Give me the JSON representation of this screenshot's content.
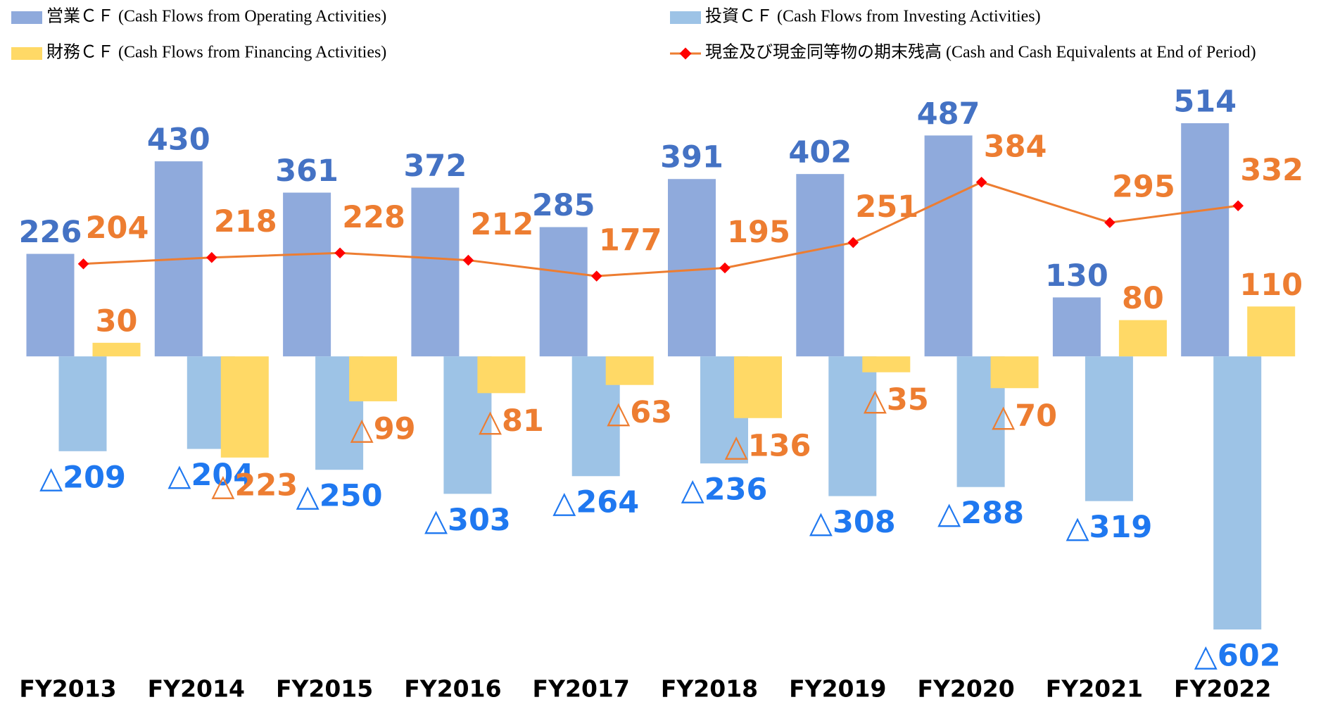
{
  "chart_data": {
    "type": "bar",
    "categories": [
      "FY2013",
      "FY2014",
      "FY2015",
      "FY2016",
      "FY2017",
      "FY2018",
      "FY2019",
      "FY2020",
      "FY2021",
      "FY2022"
    ],
    "series": [
      {
        "name": "営業ＣＦ (Cash Flows from Operating Activities)",
        "type": "bar",
        "color": "#8faadc",
        "label_color": "#4472c4",
        "values": [
          226,
          430,
          361,
          372,
          285,
          391,
          402,
          487,
          130,
          514
        ]
      },
      {
        "name": "投資ＣＦ (Cash Flows from Investing Activities)",
        "type": "bar",
        "color": "#9dc3e6",
        "label_color": "#1f78f0",
        "values": [
          -209,
          -204,
          -250,
          -303,
          -264,
          -236,
          -308,
          -288,
          -319,
          -602
        ],
        "value_labels": [
          "△209",
          "△204",
          "△250",
          "△303",
          "△264",
          "△236",
          "△308",
          "△288",
          "△319",
          "△602"
        ]
      },
      {
        "name": "財務ＣＦ (Cash Flows from Financing Activities)",
        "type": "bar",
        "color": "#ffd966",
        "label_color": "#ed7d31",
        "values": [
          30,
          -223,
          -99,
          -81,
          -63,
          -136,
          -35,
          -70,
          80,
          110
        ],
        "value_labels": [
          "30",
          "△223",
          "△99",
          "△81",
          "△63",
          "△136",
          "△35",
          "△70",
          "80",
          "110"
        ]
      },
      {
        "name": "現金及び現金同等物の期末残高 (Cash and Cash Equivalents at End of Period)",
        "type": "line",
        "color": "#ed7d31",
        "marker_color": "#ff0000",
        "label_color": "#ed7d31",
        "values": [
          204,
          218,
          228,
          212,
          177,
          195,
          251,
          384,
          295,
          332
        ]
      }
    ]
  }
}
